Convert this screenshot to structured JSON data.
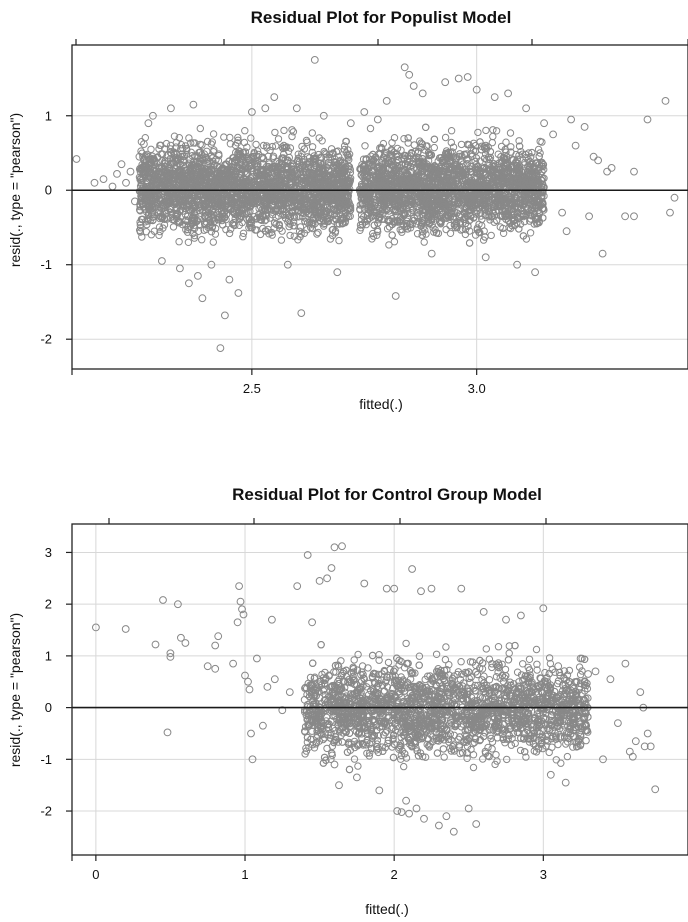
{
  "chart_data": [
    {
      "type": "scatter",
      "title": "Residual Plot for Populist Model",
      "xlabel": "fitted(.)",
      "ylabel": "resid(., type = \"pearson\")",
      "xlim": [
        2.1,
        3.47
      ],
      "ylim": [
        -2.4,
        1.95
      ],
      "xticks": [
        2.5,
        3.0
      ],
      "xtick_labels": [
        "2.5",
        "3.0"
      ],
      "yticks": [
        -2,
        -1,
        0,
        1
      ],
      "ytick_labels": [
        "-2",
        "-1",
        "0",
        "1"
      ],
      "grid": true,
      "reference_line_y": 0,
      "marker": "open circle",
      "marker_color": "#888888",
      "dense_clusters": [
        {
          "x_range": [
            2.25,
            2.72
          ],
          "y_range": [
            -0.8,
            0.85
          ]
        },
        {
          "x_range": [
            2.74,
            3.15
          ],
          "y_range": [
            -0.8,
            0.85
          ]
        }
      ],
      "points": [
        [
          2.11,
          0.42
        ],
        [
          2.15,
          0.1
        ],
        [
          2.17,
          0.15
        ],
        [
          2.19,
          0.05
        ],
        [
          2.2,
          0.22
        ],
        [
          2.21,
          0.35
        ],
        [
          2.22,
          0.1
        ],
        [
          2.23,
          0.25
        ],
        [
          2.24,
          -0.15
        ],
        [
          2.25,
          0.45
        ],
        [
          2.26,
          0.62
        ],
        [
          2.27,
          0.9
        ],
        [
          2.28,
          1.0
        ],
        [
          2.3,
          -0.95
        ],
        [
          2.32,
          1.1
        ],
        [
          2.34,
          -1.05
        ],
        [
          2.36,
          -1.25
        ],
        [
          2.37,
          1.15
        ],
        [
          2.38,
          -1.15
        ],
        [
          2.39,
          -1.45
        ],
        [
          2.41,
          -1.0
        ],
        [
          2.43,
          -2.12
        ],
        [
          2.44,
          -1.68
        ],
        [
          2.45,
          -1.2
        ],
        [
          2.47,
          -1.38
        ],
        [
          2.5,
          1.05
        ],
        [
          2.53,
          1.1
        ],
        [
          2.55,
          1.25
        ],
        [
          2.58,
          -1.0
        ],
        [
          2.6,
          1.1
        ],
        [
          2.61,
          -1.65
        ],
        [
          2.64,
          1.75
        ],
        [
          2.66,
          1.0
        ],
        [
          2.69,
          -1.1
        ],
        [
          2.72,
          0.9
        ],
        [
          2.75,
          1.05
        ],
        [
          2.78,
          0.95
        ],
        [
          2.8,
          1.2
        ],
        [
          2.82,
          -1.42
        ],
        [
          2.84,
          1.65
        ],
        [
          2.85,
          1.55
        ],
        [
          2.86,
          1.4
        ],
        [
          2.88,
          1.3
        ],
        [
          2.9,
          -0.85
        ],
        [
          2.93,
          1.45
        ],
        [
          2.96,
          1.5
        ],
        [
          2.98,
          1.52
        ],
        [
          3.0,
          1.35
        ],
        [
          3.02,
          -0.9
        ],
        [
          3.04,
          1.25
        ],
        [
          3.07,
          1.3
        ],
        [
          3.09,
          -1.0
        ],
        [
          3.11,
          1.1
        ],
        [
          3.13,
          -1.1
        ],
        [
          3.15,
          0.9
        ],
        [
          3.17,
          0.75
        ],
        [
          3.19,
          -0.3
        ],
        [
          3.2,
          -0.55
        ],
        [
          3.21,
          0.95
        ],
        [
          3.22,
          0.6
        ],
        [
          3.24,
          0.85
        ],
        [
          3.25,
          -0.35
        ],
        [
          3.26,
          0.45
        ],
        [
          3.27,
          0.4
        ],
        [
          3.28,
          -0.85
        ],
        [
          3.29,
          0.25
        ],
        [
          3.3,
          0.3
        ],
        [
          3.33,
          -0.35
        ],
        [
          3.35,
          -0.35
        ],
        [
          3.35,
          0.25
        ],
        [
          3.38,
          0.95
        ],
        [
          3.42,
          1.2
        ],
        [
          3.43,
          -0.3
        ],
        [
          3.44,
          -0.1
        ]
      ]
    },
    {
      "type": "scatter",
      "title": "Residual Plot for Control Group Model",
      "xlabel": "fitted(.)",
      "ylabel": "resid(., type = \"pearson\")",
      "xlim": [
        -0.16,
        3.97
      ],
      "ylim": [
        -2.85,
        3.55
      ],
      "xticks": [
        0,
        1,
        2,
        3
      ],
      "xtick_labels": [
        "0",
        "1",
        "2",
        "3"
      ],
      "yticks": [
        -2,
        -1,
        0,
        1,
        2,
        3
      ],
      "ytick_labels": [
        "-2",
        "-1",
        "0",
        "1",
        "2",
        "3"
      ],
      "grid": true,
      "reference_line_y": 0,
      "marker": "open circle",
      "marker_color": "#888888",
      "dense_clusters": [
        {
          "x_range": [
            1.4,
            3.3
          ],
          "y_range": [
            -1.3,
            1.25
          ]
        }
      ],
      "points": [
        [
          0.0,
          1.55
        ],
        [
          0.2,
          1.52
        ],
        [
          0.4,
          1.22
        ],
        [
          0.45,
          2.08
        ],
        [
          0.5,
          1.05
        ],
        [
          0.5,
          0.98
        ],
        [
          0.48,
          -0.48
        ],
        [
          0.55,
          2.0
        ],
        [
          0.57,
          1.35
        ],
        [
          0.6,
          1.25
        ],
        [
          0.75,
          0.8
        ],
        [
          0.8,
          0.75
        ],
        [
          0.8,
          1.2
        ],
        [
          0.82,
          1.38
        ],
        [
          0.92,
          0.85
        ],
        [
          0.95,
          1.65
        ],
        [
          0.96,
          2.35
        ],
        [
          0.97,
          2.05
        ],
        [
          0.98,
          1.9
        ],
        [
          0.99,
          1.8
        ],
        [
          1.0,
          0.62
        ],
        [
          1.02,
          0.5
        ],
        [
          1.03,
          0.35
        ],
        [
          1.04,
          -0.5
        ],
        [
          1.05,
          -1.0
        ],
        [
          1.08,
          0.95
        ],
        [
          1.12,
          -0.35
        ],
        [
          1.15,
          0.4
        ],
        [
          1.18,
          1.7
        ],
        [
          1.2,
          0.55
        ],
        [
          1.25,
          -0.05
        ],
        [
          1.3,
          0.3
        ],
        [
          1.35,
          2.35
        ],
        [
          1.4,
          0.15
        ],
        [
          1.42,
          2.95
        ],
        [
          1.45,
          1.65
        ],
        [
          1.48,
          -0.25
        ],
        [
          1.5,
          2.45
        ],
        [
          1.55,
          2.5
        ],
        [
          1.58,
          2.7
        ],
        [
          1.6,
          3.1
        ],
        [
          1.65,
          3.12
        ],
        [
          1.6,
          -1.1
        ],
        [
          1.63,
          -1.5
        ],
        [
          1.75,
          -1.35
        ],
        [
          1.8,
          2.4
        ],
        [
          1.9,
          -1.6
        ],
        [
          1.95,
          2.3
        ],
        [
          2.0,
          2.3
        ],
        [
          2.02,
          -2.0
        ],
        [
          2.05,
          -2.02
        ],
        [
          2.08,
          -1.8
        ],
        [
          2.1,
          -2.05
        ],
        [
          2.12,
          2.68
        ],
        [
          2.15,
          -1.95
        ],
        [
          2.18,
          2.25
        ],
        [
          2.2,
          -2.15
        ],
        [
          2.25,
          2.3
        ],
        [
          2.3,
          -2.28
        ],
        [
          2.35,
          -2.1
        ],
        [
          2.4,
          -2.4
        ],
        [
          2.45,
          2.3
        ],
        [
          2.5,
          -1.95
        ],
        [
          2.55,
          -2.25
        ],
        [
          2.6,
          1.85
        ],
        [
          2.75,
          1.7
        ],
        [
          2.85,
          1.78
        ],
        [
          3.0,
          1.92
        ],
        [
          3.05,
          -1.3
        ],
        [
          3.1,
          0.8
        ],
        [
          3.15,
          -1.45
        ],
        [
          3.25,
          0.95
        ],
        [
          3.3,
          0.65
        ],
        [
          3.35,
          0.7
        ],
        [
          3.4,
          -1.0
        ],
        [
          3.45,
          0.55
        ],
        [
          3.5,
          -0.3
        ],
        [
          3.55,
          0.85
        ],
        [
          3.58,
          -0.85
        ],
        [
          3.6,
          -0.95
        ],
        [
          3.62,
          -0.65
        ],
        [
          3.65,
          0.3
        ],
        [
          3.67,
          0.0
        ],
        [
          3.7,
          -0.5
        ],
        [
          3.72,
          -0.75
        ],
        [
          3.75,
          -1.58
        ],
        [
          3.68,
          -0.75
        ]
      ]
    }
  ]
}
